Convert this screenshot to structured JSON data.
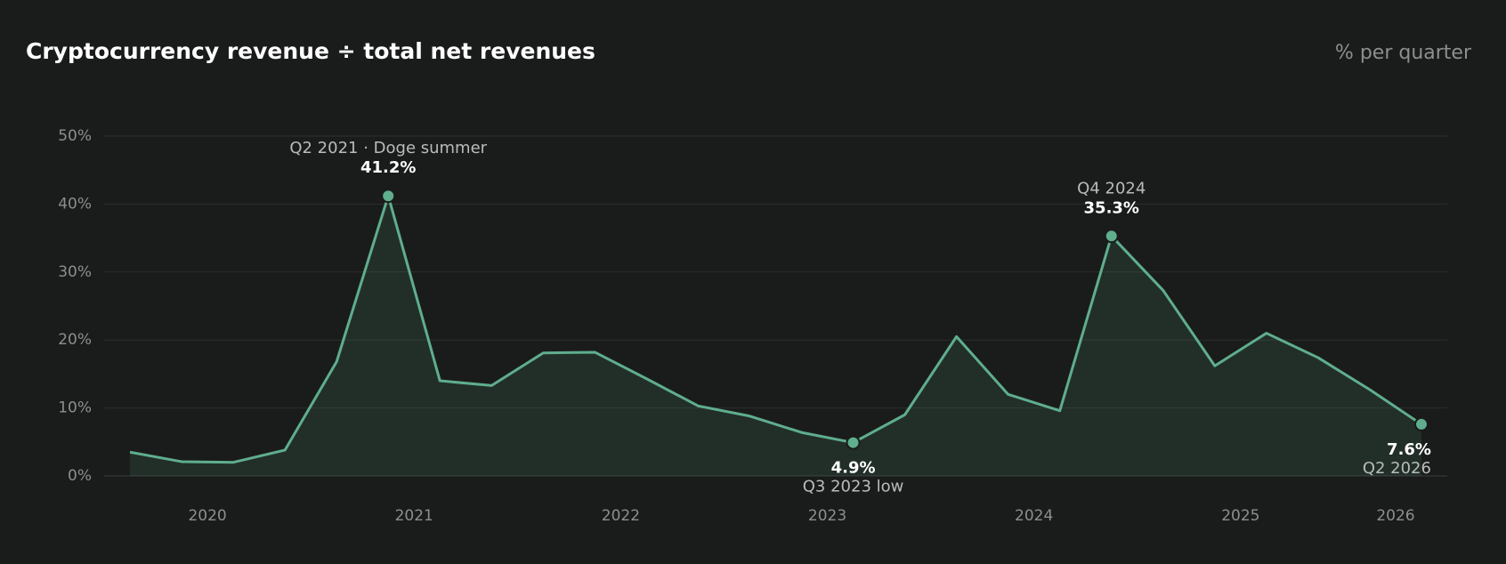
{
  "chart_data": {
    "type": "line",
    "title": "Cryptocurrency revenue ÷ total net revenues",
    "subtitle": "% per quarter",
    "categories": [
      null,
      null,
      null,
      null,
      null,
      null,
      null,
      null,
      null,
      null,
      null,
      null,
      null,
      null,
      null,
      null,
      null,
      null,
      null,
      null,
      null,
      null,
      null,
      null,
      null,
      null
    ],
    "values": [
      3.5,
      2.1,
      2.0,
      3.8,
      16.8,
      41.2,
      14.0,
      13.3,
      18.1,
      18.2,
      14.3,
      10.3,
      8.8,
      6.4,
      4.9,
      9.0,
      20.5,
      12.0,
      9.6,
      35.3,
      27.3,
      16.2,
      21.0,
      17.4,
      12.7,
      7.6
    ],
    "value_labels": [
      null,
      null,
      null,
      null,
      null,
      "41.2%",
      null,
      null,
      null,
      null,
      null,
      null,
      null,
      null,
      "4.9%",
      null,
      null,
      null,
      null,
      "35.3%",
      null,
      null,
      null,
      null,
      null,
      "7.6%"
    ],
    "point_labels": [
      null,
      null,
      null,
      null,
      null,
      "Q2 2021 · Doge summer",
      null,
      null,
      null,
      null,
      null,
      null,
      null,
      null,
      "Q3 2023 low",
      null,
      null,
      null,
      null,
      "Q4 2024",
      null,
      null,
      null,
      null,
      null,
      "Q2 2026"
    ],
    "color": "#5fae8e",
    "xlim": [
      -0.5,
      25.5
    ],
    "xticks": [
      {
        "value": 1.5,
        "label": "2020"
      },
      {
        "value": 5.5,
        "label": "2021"
      },
      {
        "value": 9.5,
        "label": "2022"
      },
      {
        "value": 13.5,
        "label": "2023"
      },
      {
        "value": 17.5,
        "label": "2024"
      },
      {
        "value": 21.5,
        "label": "2025"
      },
      {
        "value": 24.5,
        "label": "2026"
      }
    ],
    "ylim": [
      0,
      50
    ],
    "yticks": [
      {
        "value": 0,
        "label": "0%"
      },
      {
        "value": 10,
        "label": "10%"
      },
      {
        "value": 20,
        "label": "20%"
      },
      {
        "value": 30,
        "label": "30%"
      },
      {
        "value": 40,
        "label": "40%"
      },
      {
        "value": 50,
        "label": "50%"
      }
    ],
    "grid": true
  }
}
